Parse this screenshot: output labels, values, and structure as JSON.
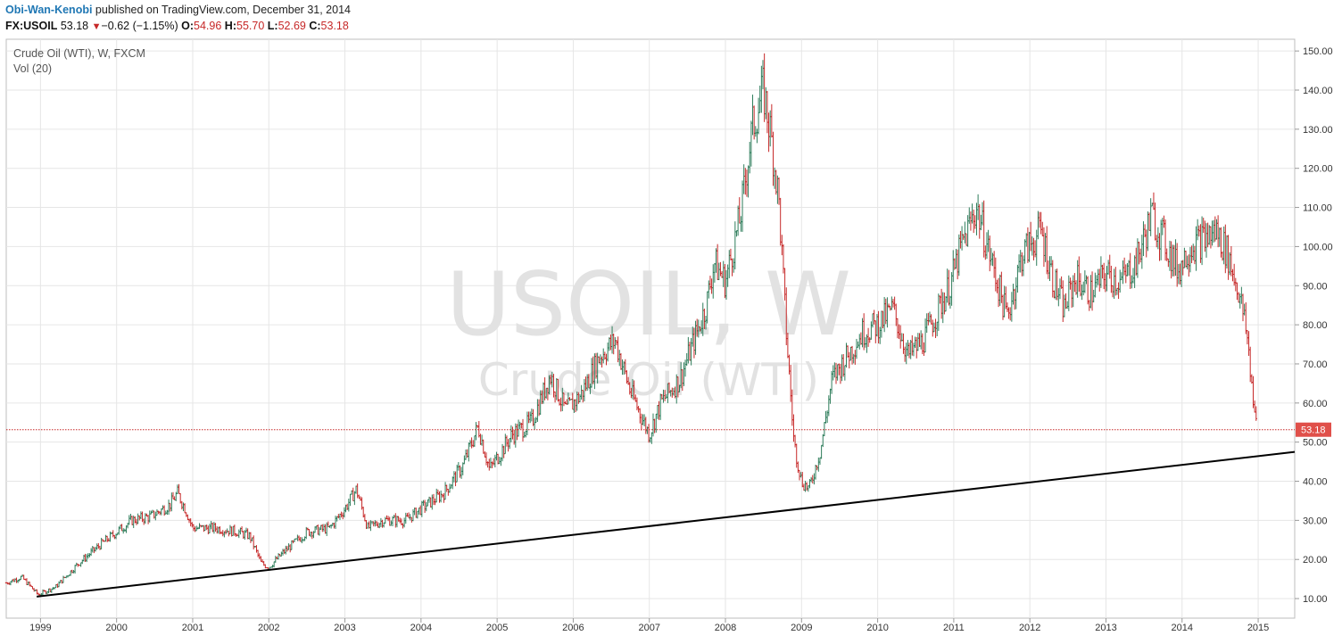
{
  "header": {
    "author": "Obi-Wan-Kenobi",
    "published": " published on TradingView.com, December 31, 2014"
  },
  "quote": {
    "symbol": "FX:USOIL",
    "last": "53.18",
    "change": "−0.62 (−1.15%)",
    "open_label": "O:",
    "open": "54.96",
    "high_label": "H:",
    "high": "55.70",
    "low_label": "L:",
    "low": "52.69",
    "close_label": "C:",
    "close": "53.18"
  },
  "legend": {
    "series": "Crude Oil (WTI), W, FXCM",
    "indicator": "Vol (20)"
  },
  "watermark": {
    "line1": "USOIL, W",
    "line2": "Crude Oil (WTI)"
  },
  "colors": {
    "up": "#2e7d5b",
    "down": "#c62828",
    "grid": "#e6e6e6",
    "trendline": "#000000",
    "price_line": "#c62828",
    "price_badge": "#e0504a",
    "watermark": "#e2e2e2"
  },
  "chart_data": {
    "type": "candlestick",
    "timeframe": "W",
    "x_ticks": [
      "1999",
      "2000",
      "2001",
      "2002",
      "2003",
      "2004",
      "2005",
      "2006",
      "2007",
      "2008",
      "2009",
      "2010",
      "2011",
      "2012",
      "2013",
      "2014",
      "2015"
    ],
    "y_ticks": [
      "10.00",
      "20.00",
      "30.00",
      "40.00",
      "50.00",
      "60.00",
      "70.00",
      "80.00",
      "90.00",
      "100.00",
      "110.00",
      "120.00",
      "130.00",
      "140.00",
      "150.00"
    ],
    "ylim": [
      5,
      153
    ],
    "xlim": [
      1998.55,
      2015.48
    ],
    "last_price": 53.18,
    "last_price_label": "53.18",
    "trendline": {
      "from": [
        1998.95,
        10.5
      ],
      "to": [
        2015.48,
        47.5
      ]
    },
    "price_path": [
      [
        1998.55,
        14
      ],
      [
        1998.75,
        15.5
      ],
      [
        1998.97,
        11
      ],
      [
        1999.2,
        13
      ],
      [
        1999.5,
        19
      ],
      [
        1999.8,
        24
      ],
      [
        2000.0,
        27
      ],
      [
        2000.2,
        30
      ],
      [
        2000.45,
        31
      ],
      [
        2000.7,
        34
      ],
      [
        2000.8,
        37
      ],
      [
        2000.9,
        33
      ],
      [
        2001.0,
        28
      ],
      [
        2001.3,
        28
      ],
      [
        2001.6,
        27
      ],
      [
        2001.75,
        26
      ],
      [
        2001.9,
        19
      ],
      [
        2002.0,
        18
      ],
      [
        2002.2,
        22
      ],
      [
        2002.5,
        27
      ],
      [
        2002.8,
        28
      ],
      [
        2003.0,
        33
      ],
      [
        2003.15,
        38
      ],
      [
        2003.3,
        28
      ],
      [
        2003.5,
        30
      ],
      [
        2003.8,
        30
      ],
      [
        2004.0,
        33
      ],
      [
        2004.3,
        37
      ],
      [
        2004.55,
        44
      ],
      [
        2004.75,
        54
      ],
      [
        2004.9,
        43
      ],
      [
        2005.2,
        52
      ],
      [
        2005.45,
        55
      ],
      [
        2005.7,
        67
      ],
      [
        2005.9,
        58
      ],
      [
        2006.1,
        62
      ],
      [
        2006.35,
        72
      ],
      [
        2006.55,
        76
      ],
      [
        2006.75,
        63
      ],
      [
        2007.0,
        52
      ],
      [
        2007.15,
        60
      ],
      [
        2007.4,
        66
      ],
      [
        2007.55,
        74
      ],
      [
        2007.75,
        85
      ],
      [
        2007.85,
        96
      ],
      [
        2008.0,
        91
      ],
      [
        2008.2,
        108
      ],
      [
        2008.35,
        130
      ],
      [
        2008.5,
        140
      ],
      [
        2008.6,
        128
      ],
      [
        2008.7,
        112
      ],
      [
        2008.8,
        78
      ],
      [
        2008.9,
        50
      ],
      [
        2009.0,
        40
      ],
      [
        2009.1,
        38
      ],
      [
        2009.25,
        48
      ],
      [
        2009.4,
        66
      ],
      [
        2009.6,
        72
      ],
      [
        2009.8,
        78
      ],
      [
        2010.0,
        80
      ],
      [
        2010.2,
        84
      ],
      [
        2010.4,
        72
      ],
      [
        2010.6,
        76
      ],
      [
        2010.8,
        84
      ],
      [
        2010.95,
        90
      ],
      [
        2011.1,
        100
      ],
      [
        2011.3,
        110
      ],
      [
        2011.5,
        96
      ],
      [
        2011.7,
        82
      ],
      [
        2011.9,
        98
      ],
      [
        2012.15,
        104
      ],
      [
        2012.3,
        92
      ],
      [
        2012.45,
        84
      ],
      [
        2012.6,
        92
      ],
      [
        2012.8,
        88
      ],
      [
        2013.0,
        93
      ],
      [
        2013.2,
        91
      ],
      [
        2013.4,
        96
      ],
      [
        2013.6,
        108
      ],
      [
        2013.75,
        102
      ],
      [
        2013.95,
        94
      ],
      [
        2014.1,
        100
      ],
      [
        2014.3,
        102
      ],
      [
        2014.45,
        104
      ],
      [
        2014.6,
        98
      ],
      [
        2014.75,
        88
      ],
      [
        2014.85,
        78
      ],
      [
        2014.92,
        64
      ],
      [
        2014.98,
        53.18
      ]
    ]
  }
}
